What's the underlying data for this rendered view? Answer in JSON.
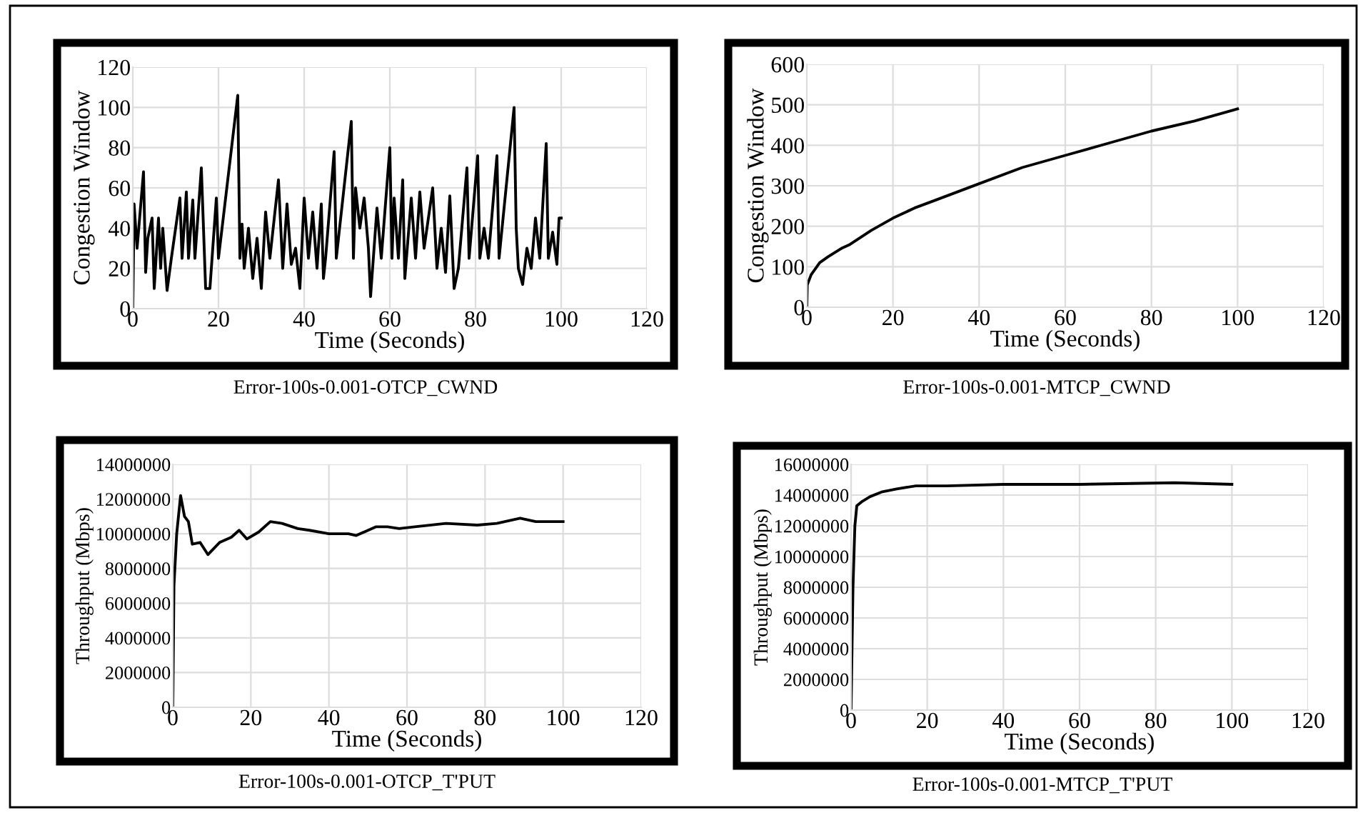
{
  "chart_data": [
    {
      "type": "line",
      "xlabel": "Time (Seconds)",
      "ylabel": "Congestion Window",
      "annotations": [
        "Error-100s-0.001-OTCP_CWND"
      ],
      "xlim": [
        0,
        120
      ],
      "xticks": [
        0,
        20,
        40,
        60,
        80,
        100,
        120
      ],
      "ylim": [
        0,
        120
      ],
      "yticks": [
        0,
        20,
        40,
        60,
        80,
        100,
        120
      ],
      "grid": true,
      "series": [
        {
          "color": "#000000",
          "x": [
            0,
            0.3,
            1,
            2.5,
            3,
            3.5,
            4.5,
            5,
            6,
            6.5,
            7,
            8,
            9,
            10,
            11,
            11.5,
            12.5,
            13,
            14,
            14.5,
            16,
            16.5,
            17,
            18,
            19.5,
            20,
            24.5,
            25,
            25.5,
            26,
            27,
            28,
            29,
            30,
            31,
            32,
            34,
            35,
            36,
            37,
            38,
            39,
            40,
            41,
            42,
            43,
            44,
            44.5,
            45,
            47,
            47.5,
            51,
            51.5,
            52,
            53,
            54,
            55,
            55.5,
            57,
            58,
            60,
            60.5,
            61,
            62,
            63,
            63.5,
            65,
            66,
            67,
            68,
            70,
            71,
            72,
            73,
            74,
            75,
            76,
            78,
            78.5,
            80.5,
            81,
            82,
            83,
            85,
            85.5,
            89,
            89.5,
            90,
            91,
            92,
            93,
            94,
            95,
            96.5,
            97,
            98,
            99,
            99.5,
            100
          ],
          "values": [
            0,
            52,
            30,
            68,
            18,
            35,
            45,
            10,
            45,
            20,
            40,
            9,
            25,
            40,
            55,
            25,
            58,
            25,
            54,
            25,
            70,
            40,
            10,
            10,
            55,
            25,
            106,
            25,
            42,
            20,
            40,
            15,
            35,
            10,
            48,
            25,
            64,
            20,
            52,
            22,
            30,
            10,
            55,
            25,
            48,
            20,
            52,
            15,
            25,
            78,
            25,
            93,
            25,
            60,
            40,
            55,
            30,
            6,
            50,
            25,
            80,
            25,
            55,
            25,
            64,
            15,
            55,
            25,
            58,
            30,
            60,
            20,
            40,
            18,
            56,
            10,
            20,
            70,
            25,
            76,
            25,
            40,
            25,
            76,
            25,
            100,
            40,
            20,
            12,
            30,
            20,
            45,
            25,
            82,
            25,
            38,
            22,
            45,
            45
          ]
        }
      ]
    },
    {
      "type": "line",
      "xlabel": "Time (Seconds)",
      "ylabel": "Congestion Window",
      "annotations": [
        "Error-100s-0.001-MTCP_CWND"
      ],
      "xlim": [
        0,
        120
      ],
      "xticks": [
        0,
        20,
        40,
        60,
        80,
        100,
        120
      ],
      "ylim": [
        0,
        600
      ],
      "yticks": [
        0,
        100,
        200,
        300,
        400,
        500,
        600
      ],
      "grid": true,
      "series": [
        {
          "color": "#000000",
          "x": [
            0,
            0.1,
            1,
            3,
            5,
            8,
            10,
            15,
            20,
            25,
            30,
            40,
            50,
            60,
            70,
            80,
            90,
            100
          ],
          "values": [
            0,
            55,
            80,
            110,
            125,
            145,
            155,
            190,
            220,
            245,
            265,
            305,
            345,
            375,
            405,
            435,
            460,
            490
          ]
        }
      ]
    },
    {
      "type": "line",
      "xlabel": "Time (Seconds)",
      "ylabel": "Throughput (Mbps)",
      "annotations": [
        "Error-100s-0.001-OTCP_T'PUT"
      ],
      "xlim": [
        0,
        120
      ],
      "xticks": [
        0,
        20,
        40,
        60,
        80,
        100,
        120
      ],
      "ylim": [
        0,
        14000000
      ],
      "yticks": [
        0,
        2000000,
        4000000,
        6000000,
        8000000,
        10000000,
        12000000,
        14000000
      ],
      "grid": true,
      "series": [
        {
          "color": "#000000",
          "x": [
            0,
            0.3,
            1,
            2,
            3,
            4,
            5,
            7,
            9,
            12,
            15,
            17,
            19,
            22,
            25,
            28,
            32,
            35,
            40,
            45,
            47,
            52,
            55,
            58,
            62,
            70,
            78,
            83,
            89,
            93,
            100
          ],
          "values": [
            0,
            7000000,
            10000000,
            12200000,
            11000000,
            10700000,
            9400000,
            9500000,
            8800000,
            9500000,
            9800000,
            10200000,
            9700000,
            10100000,
            10700000,
            10600000,
            10300000,
            10200000,
            10000000,
            10000000,
            9900000,
            10400000,
            10400000,
            10300000,
            10400000,
            10600000,
            10500000,
            10600000,
            10900000,
            10700000,
            10700000
          ]
        }
      ]
    },
    {
      "type": "line",
      "xlabel": "Time (Seconds)",
      "ylabel": "Throughput (Mbps)",
      "annotations": [
        "Error-100s-0.001-MTCP_T'PUT"
      ],
      "xlim": [
        0,
        120
      ],
      "xticks": [
        0,
        20,
        40,
        60,
        80,
        100,
        120
      ],
      "ylim": [
        0,
        16000000
      ],
      "yticks": [
        0,
        2000000,
        4000000,
        6000000,
        8000000,
        10000000,
        12000000,
        14000000,
        16000000
      ],
      "grid": true,
      "series": [
        {
          "color": "#000000",
          "x": [
            0,
            0.5,
            1,
            1.5,
            3,
            5,
            8,
            12,
            17,
            25,
            40,
            60,
            85,
            100
          ],
          "values": [
            0,
            8000000,
            12000000,
            13300000,
            13600000,
            13900000,
            14200000,
            14400000,
            14600000,
            14600000,
            14700000,
            14700000,
            14800000,
            14700000
          ]
        }
      ]
    }
  ]
}
